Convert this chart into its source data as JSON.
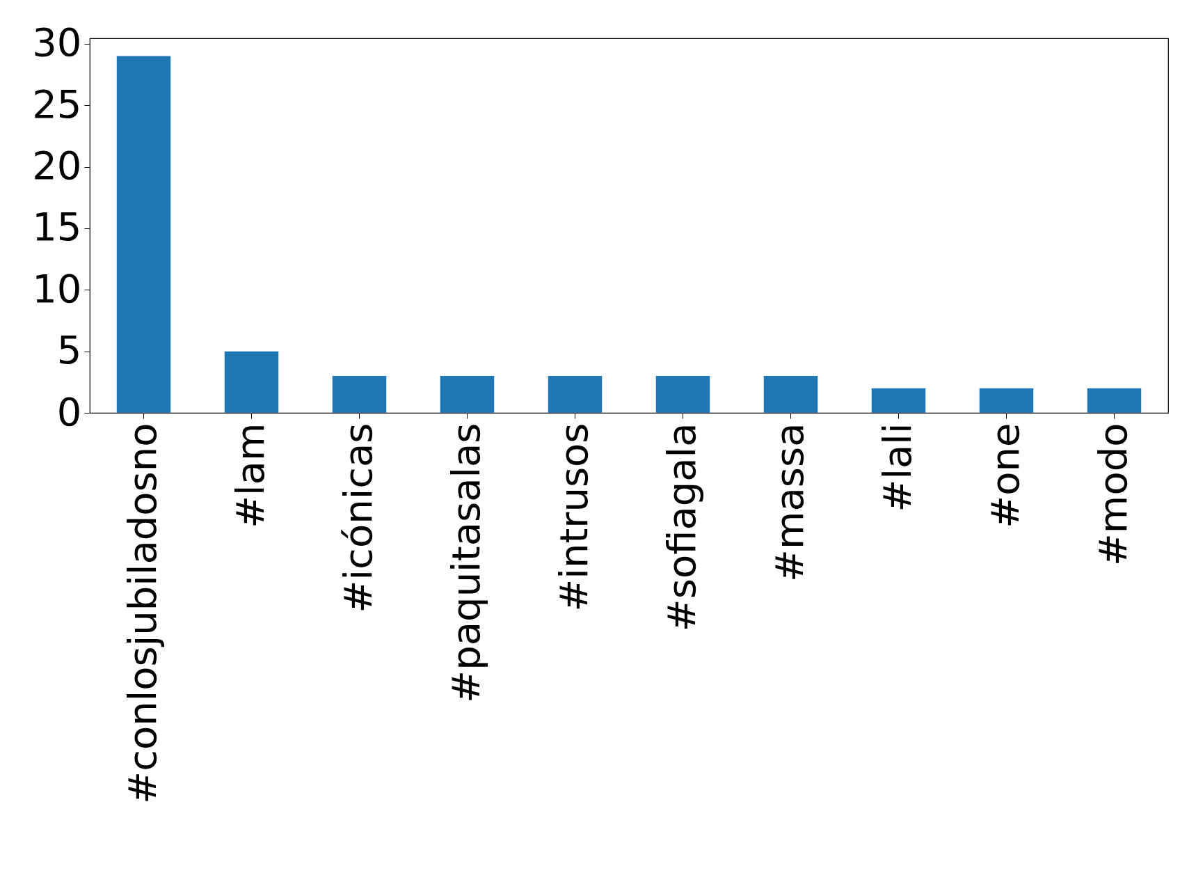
{
  "chart_data": {
    "type": "bar",
    "categories": [
      "#conlosjubiladosno",
      "#lam",
      "#icónicas",
      "#paquitasalas",
      "#intrusos",
      "#sofiagala",
      "#massa",
      "#lali",
      "#one",
      "#modo"
    ],
    "values": [
      29,
      5,
      3,
      3,
      3,
      3,
      3,
      2,
      2,
      2
    ],
    "color": "#1f77b4",
    "ylim": [
      0,
      30.45
    ],
    "yticks": [
      0,
      5,
      10,
      15,
      20,
      25,
      30
    ],
    "grid": false
  }
}
